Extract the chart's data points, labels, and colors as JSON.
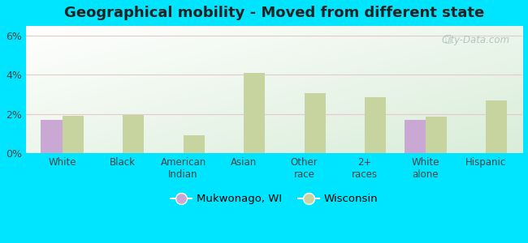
{
  "title": "Geographical mobility - Moved from different state",
  "categories": [
    "White",
    "Black",
    "American\nIndian",
    "Asian",
    "Other\nrace",
    "2+\nraces",
    "White\nalone",
    "Hispanic"
  ],
  "mukwonago_values": [
    1.7,
    0.0,
    0.0,
    0.0,
    0.0,
    0.0,
    1.7,
    0.0
  ],
  "wisconsin_values": [
    1.9,
    1.95,
    0.9,
    4.1,
    3.05,
    2.85,
    1.85,
    2.7
  ],
  "mukwonago_color": "#c9a8d4",
  "wisconsin_color": "#c8d4a0",
  "outer_background": "#00e5ff",
  "ylim": [
    0,
    6.5
  ],
  "yticks": [
    0,
    2,
    4,
    6
  ],
  "ytick_labels": [
    "0%",
    "2%",
    "4%",
    "6%"
  ],
  "grid_color": "#e8c8c8",
  "legend_mukwonago": "Mukwonago, WI",
  "legend_wisconsin": "Wisconsin",
  "bar_width": 0.35
}
